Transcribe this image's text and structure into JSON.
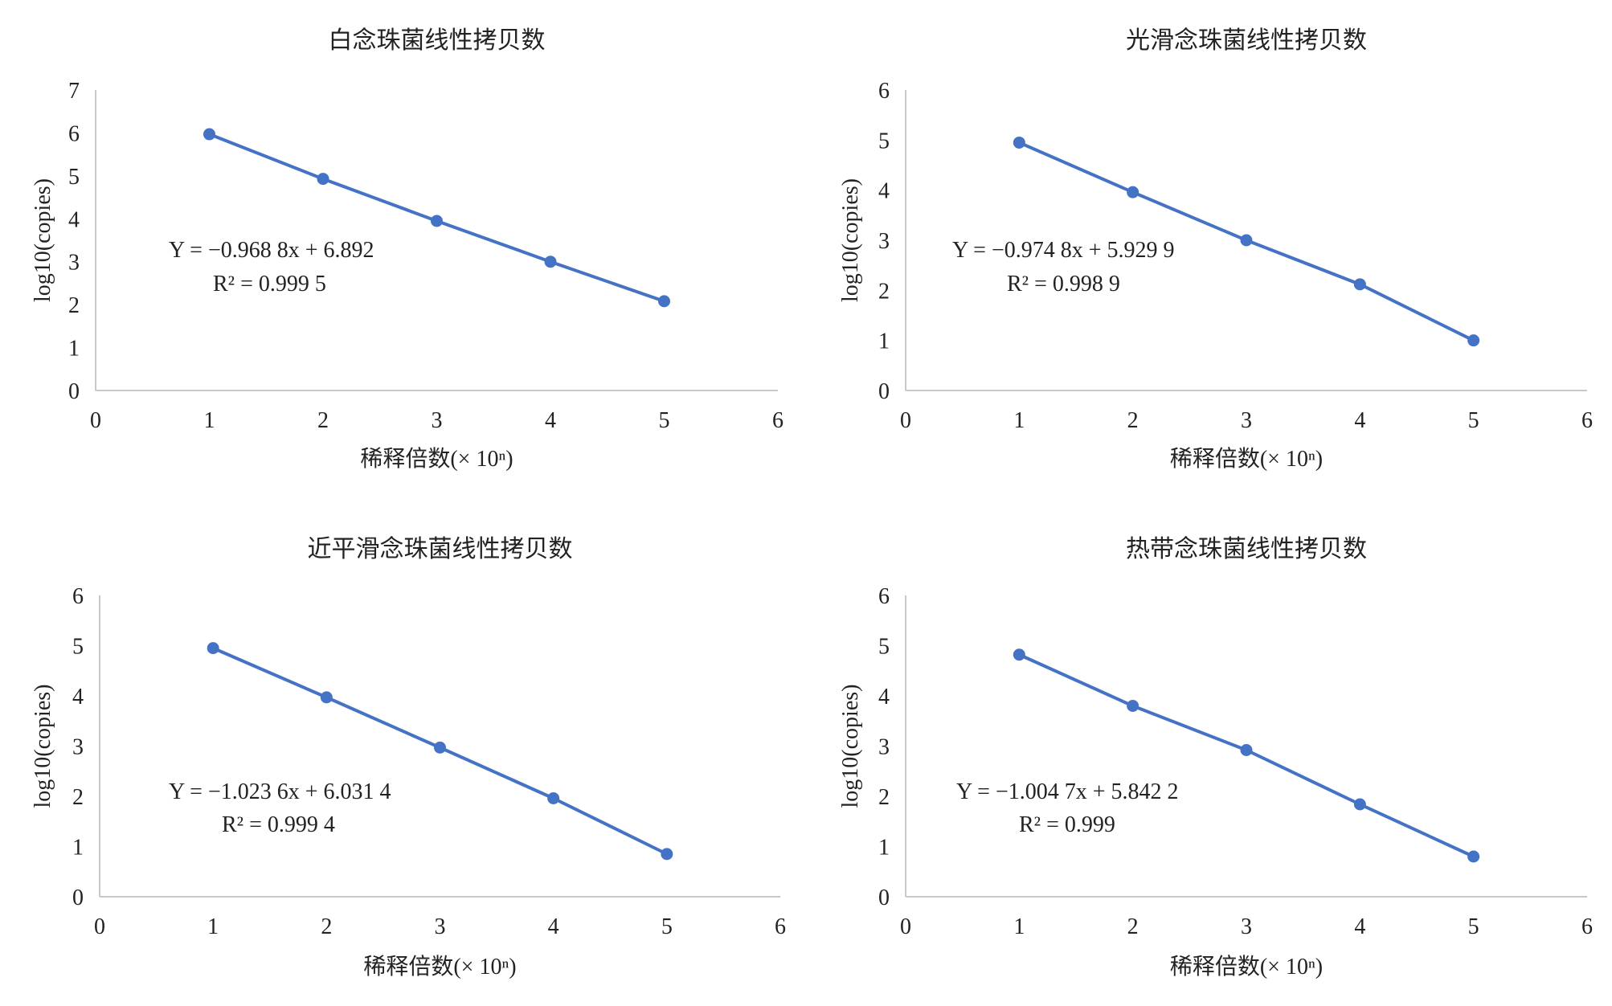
{
  "colors": {
    "series": "#4472c4"
  },
  "chart_data": [
    {
      "type": "line",
      "title": "白念珠菌线性拷贝数",
      "xlabel": "稀释倍数(× 10ⁿ)",
      "ylabel": "log10(copies)",
      "xlim": [
        0,
        6
      ],
      "ylim": [
        0,
        7
      ],
      "xticks": [
        "0",
        "1",
        "2",
        "3",
        "4",
        "5",
        "6"
      ],
      "yticks": [
        "0",
        "1",
        "2",
        "3",
        "4",
        "5",
        "6",
        "7"
      ],
      "x": [
        1,
        2,
        3,
        4,
        5
      ],
      "series": [
        {
          "values": [
            5.97,
            4.93,
            3.95,
            3.0,
            2.08
          ]
        }
      ],
      "equation": "Y = −0.968 8x + 6.892",
      "r2": "R² = 0.999 5"
    },
    {
      "type": "line",
      "title": "光滑念珠菌线性拷贝数",
      "xlabel": "稀释倍数(× 10ⁿ)",
      "ylabel": "log10(copies)",
      "xlim": [
        0,
        6
      ],
      "ylim": [
        0,
        6
      ],
      "xticks": [
        "0",
        "1",
        "2",
        "3",
        "4",
        "5",
        "6"
      ],
      "yticks": [
        "0",
        "1",
        "2",
        "3",
        "4",
        "5",
        "6"
      ],
      "x": [
        1,
        2,
        3,
        4,
        5
      ],
      "series": [
        {
          "values": [
            4.95,
            3.96,
            3.0,
            2.12,
            1.0
          ]
        }
      ],
      "equation": "Y = −0.974 8x + 5.929 9",
      "r2": "R² = 0.998 9"
    },
    {
      "type": "line",
      "title": "近平滑念珠菌线性拷贝数",
      "xlabel": "稀释倍数(× 10ⁿ)",
      "ylabel": "log10(copies)",
      "xlim": [
        0,
        6
      ],
      "ylim": [
        0,
        6
      ],
      "xticks": [
        "0",
        "1",
        "2",
        "3",
        "4",
        "5",
        "6"
      ],
      "yticks": [
        "0",
        "1",
        "2",
        "3",
        "4",
        "5",
        "6"
      ],
      "x": [
        1,
        2,
        3,
        4,
        5
      ],
      "series": [
        {
          "values": [
            4.95,
            3.97,
            2.97,
            1.96,
            0.85
          ]
        }
      ],
      "equation": "Y = −1.023 6x + 6.031 4",
      "r2": "R² = 0.999 4"
    },
    {
      "type": "line",
      "title": "热带念珠菌线性拷贝数",
      "xlabel": "稀释倍数(× 10ⁿ)",
      "ylabel": "log10(copies)",
      "xlim": [
        0,
        6
      ],
      "ylim": [
        0,
        6
      ],
      "xticks": [
        "0",
        "1",
        "2",
        "3",
        "4",
        "5",
        "6"
      ],
      "yticks": [
        "0",
        "1",
        "2",
        "3",
        "4",
        "5",
        "6"
      ],
      "x": [
        1,
        2,
        3,
        4,
        5
      ],
      "series": [
        {
          "values": [
            4.82,
            3.8,
            2.92,
            1.84,
            0.8
          ]
        }
      ],
      "equation": "Y = −1.004 7x + 5.842 2",
      "r2": "R² = 0.999"
    }
  ]
}
